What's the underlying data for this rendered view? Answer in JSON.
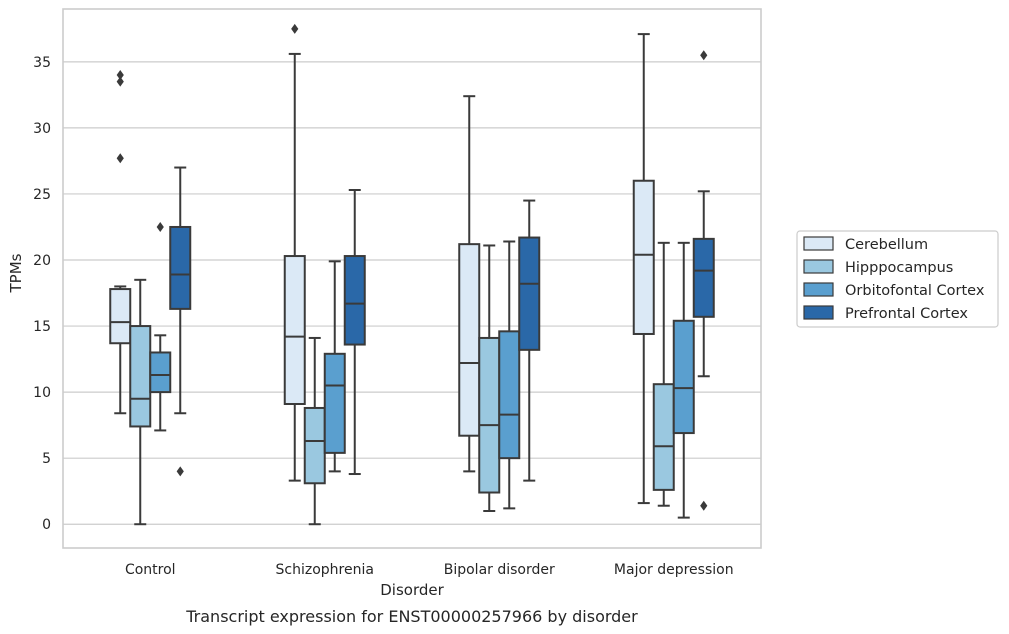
{
  "chart_data": {
    "type": "box",
    "title": "",
    "caption": "Transcript expression for ENST00000257966 by disorder",
    "xlabel": "Disorder",
    "ylabel": "TPMs",
    "ylim": [
      -1.8,
      39
    ],
    "yticks": [
      0,
      5,
      10,
      15,
      20,
      25,
      30,
      35
    ],
    "grid": "horizontal",
    "legend_position": "right",
    "categories": [
      "Control",
      "Schizophrenia",
      "Bipolar disorder",
      "Major depression"
    ],
    "series": [
      {
        "name": "Cerebellum",
        "color": "#dbe9f6",
        "boxes": [
          {
            "whisker_low": 8.4,
            "q1": 13.7,
            "median": 15.3,
            "q3": 17.8,
            "whisker_high": 18.0,
            "outliers": [
              27.7,
              33.5,
              34.0
            ]
          },
          {
            "whisker_low": 3.3,
            "q1": 9.1,
            "median": 14.2,
            "q3": 20.3,
            "whisker_high": 35.6,
            "outliers": [
              37.5
            ]
          },
          {
            "whisker_low": 4.0,
            "q1": 6.7,
            "median": 12.2,
            "q3": 21.2,
            "whisker_high": 32.4,
            "outliers": []
          },
          {
            "whisker_low": 1.6,
            "q1": 14.4,
            "median": 20.4,
            "q3": 26.0,
            "whisker_high": 37.1,
            "outliers": []
          }
        ]
      },
      {
        "name": "Hipppocampus",
        "color": "#9ac8e0",
        "boxes": [
          {
            "whisker_low": 0.0,
            "q1": 7.4,
            "median": 9.5,
            "q3": 15.0,
            "whisker_high": 18.5,
            "outliers": []
          },
          {
            "whisker_low": 0.0,
            "q1": 3.1,
            "median": 6.3,
            "q3": 8.8,
            "whisker_high": 14.1,
            "outliers": []
          },
          {
            "whisker_low": 1.0,
            "q1": 2.4,
            "median": 7.5,
            "q3": 14.1,
            "whisker_high": 21.1,
            "outliers": []
          },
          {
            "whisker_low": 1.4,
            "q1": 2.6,
            "median": 5.9,
            "q3": 10.6,
            "whisker_high": 21.3,
            "outliers": []
          }
        ]
      },
      {
        "name": "Orbitofontal Cortex",
        "color": "#5a9fcf",
        "boxes": [
          {
            "whisker_low": 7.1,
            "q1": 10.0,
            "median": 11.3,
            "q3": 13.0,
            "whisker_high": 14.3,
            "outliers": [
              22.5
            ]
          },
          {
            "whisker_low": 4.0,
            "q1": 5.4,
            "median": 10.5,
            "q3": 12.9,
            "whisker_high": 19.9,
            "outliers": []
          },
          {
            "whisker_low": 1.2,
            "q1": 5.0,
            "median": 8.3,
            "q3": 14.6,
            "whisker_high": 21.4,
            "outliers": []
          },
          {
            "whisker_low": 0.5,
            "q1": 6.9,
            "median": 10.3,
            "q3": 15.4,
            "whisker_high": 21.3,
            "outliers": []
          }
        ]
      },
      {
        "name": "Prefrontal Cortex",
        "color": "#2a68a8",
        "boxes": [
          {
            "whisker_low": 8.4,
            "q1": 16.3,
            "median": 18.9,
            "q3": 22.5,
            "whisker_high": 27.0,
            "outliers": [
              4.0
            ]
          },
          {
            "whisker_low": 3.8,
            "q1": 13.6,
            "median": 16.7,
            "q3": 20.3,
            "whisker_high": 25.3,
            "outliers": []
          },
          {
            "whisker_low": 3.3,
            "q1": 13.2,
            "median": 18.2,
            "q3": 21.7,
            "whisker_high": 24.5,
            "outliers": []
          },
          {
            "whisker_low": 11.2,
            "q1": 15.7,
            "median": 19.2,
            "q3": 21.6,
            "whisker_high": 25.2,
            "outliers": [
              1.4,
              35.5
            ]
          }
        ]
      }
    ]
  }
}
